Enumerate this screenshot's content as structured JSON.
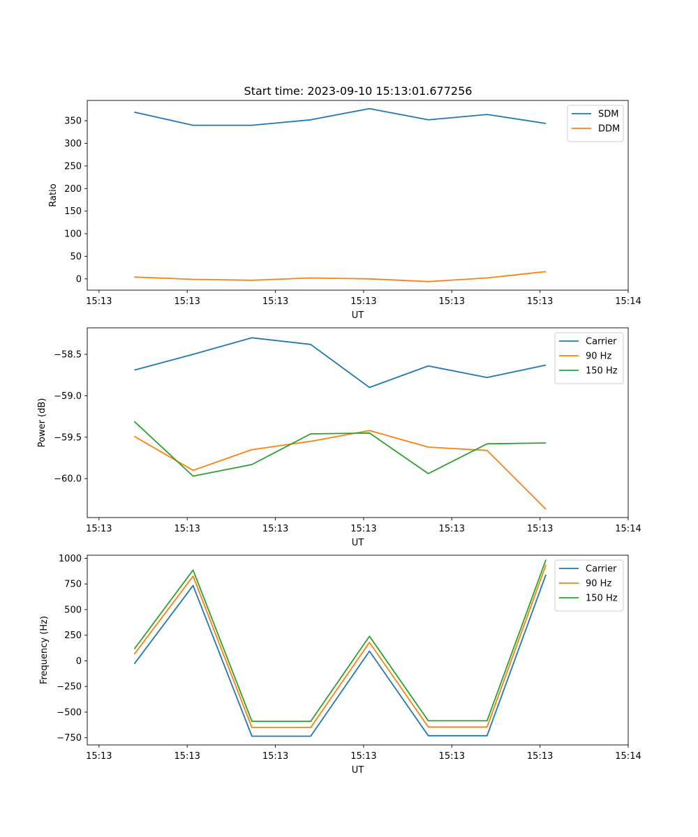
{
  "figure": {
    "title": "Start time: 2023-09-10 15:13:01.677256"
  },
  "chart_data": [
    {
      "type": "line",
      "title": "Start time: 2023-09-10 15:13:01.677256",
      "xlabel": "UT",
      "ylabel": "Ratio",
      "x": [
        1,
        2,
        3,
        4,
        5,
        6,
        7,
        8
      ],
      "xlim": [
        0.2,
        9.4
      ],
      "x_ticks": [
        0.4,
        1.9,
        3.4,
        4.9,
        6.4,
        7.9,
        9.4
      ],
      "x_tick_labels": [
        "15:13",
        "15:13",
        "15:13",
        "15:13",
        "15:13",
        "15:13",
        "15:14"
      ],
      "ylim": [
        -25,
        395
      ],
      "y_ticks": [
        0,
        50,
        100,
        150,
        200,
        250,
        300,
        350
      ],
      "y_tick_labels": [
        "0",
        "50",
        "100",
        "150",
        "200",
        "250",
        "300",
        "350"
      ],
      "legend_position": "top-right",
      "series": [
        {
          "name": "SDM",
          "color": "#1f77b4",
          "values": [
            369,
            340,
            340,
            352,
            377,
            352,
            364,
            344
          ]
        },
        {
          "name": "DDM",
          "color": "#ff7f0e",
          "values": [
            4,
            -1,
            -3,
            2,
            0,
            -6,
            2,
            16
          ]
        }
      ]
    },
    {
      "type": "line",
      "title": "",
      "xlabel": "UT",
      "ylabel": "Power (dB)",
      "x": [
        1,
        2,
        3,
        4,
        5,
        6,
        7,
        8
      ],
      "xlim": [
        0.2,
        9.4
      ],
      "x_ticks": [
        0.4,
        1.9,
        3.4,
        4.9,
        6.4,
        7.9,
        9.4
      ],
      "x_tick_labels": [
        "15:13",
        "15:13",
        "15:13",
        "15:13",
        "15:13",
        "15:13",
        "15:14"
      ],
      "ylim": [
        -60.47,
        -58.18
      ],
      "y_ticks": [
        -60.0,
        -59.5,
        -59.0,
        -58.5
      ],
      "y_tick_labels": [
        "−60.0",
        "−59.5",
        "−59.0",
        "−58.5"
      ],
      "legend_position": "top-right",
      "series": [
        {
          "name": "Carrier",
          "color": "#1f77b4",
          "values": [
            -58.69,
            -58.5,
            -58.3,
            -58.38,
            -58.9,
            -58.64,
            -58.78,
            -58.63
          ]
        },
        {
          "name": "90 Hz",
          "color": "#ff7f0e",
          "values": [
            -59.49,
            -59.9,
            -59.65,
            -59.55,
            -59.42,
            -59.62,
            -59.66,
            -60.37
          ]
        },
        {
          "name": "150 Hz",
          "color": "#2ca02c",
          "values": [
            -59.31,
            -59.97,
            -59.83,
            -59.46,
            -59.45,
            -59.94,
            -59.58,
            -59.57
          ]
        }
      ]
    },
    {
      "type": "line",
      "title": "",
      "xlabel": "UT",
      "ylabel": "Frequency (Hz)",
      "x": [
        1,
        2,
        3,
        4,
        5,
        6,
        7,
        8
      ],
      "xlim": [
        0.2,
        9.4
      ],
      "x_ticks": [
        0.4,
        1.9,
        3.4,
        4.9,
        6.4,
        7.9,
        9.4
      ],
      "x_tick_labels": [
        "15:13",
        "15:13",
        "15:13",
        "15:13",
        "15:13",
        "15:13",
        "15:14"
      ],
      "ylim": [
        -820,
        1030
      ],
      "y_ticks": [
        -750,
        -500,
        -250,
        0,
        250,
        500,
        750,
        1000
      ],
      "y_tick_labels": [
        "−750",
        "−500",
        "−250",
        "0",
        "250",
        "500",
        "750",
        "1000"
      ],
      "legend_position": "top-right",
      "series": [
        {
          "name": "Carrier",
          "color": "#1f77b4",
          "values": [
            -30,
            735,
            -735,
            -735,
            95,
            -730,
            -730,
            840
          ]
        },
        {
          "name": "90 Hz",
          "color": "#ff7f0e",
          "values": [
            65,
            825,
            -650,
            -650,
            180,
            -645,
            -645,
            935
          ]
        },
        {
          "name": "150 Hz",
          "color": "#2ca02c",
          "values": [
            115,
            885,
            -590,
            -590,
            240,
            -585,
            -585,
            985
          ]
        }
      ]
    }
  ]
}
